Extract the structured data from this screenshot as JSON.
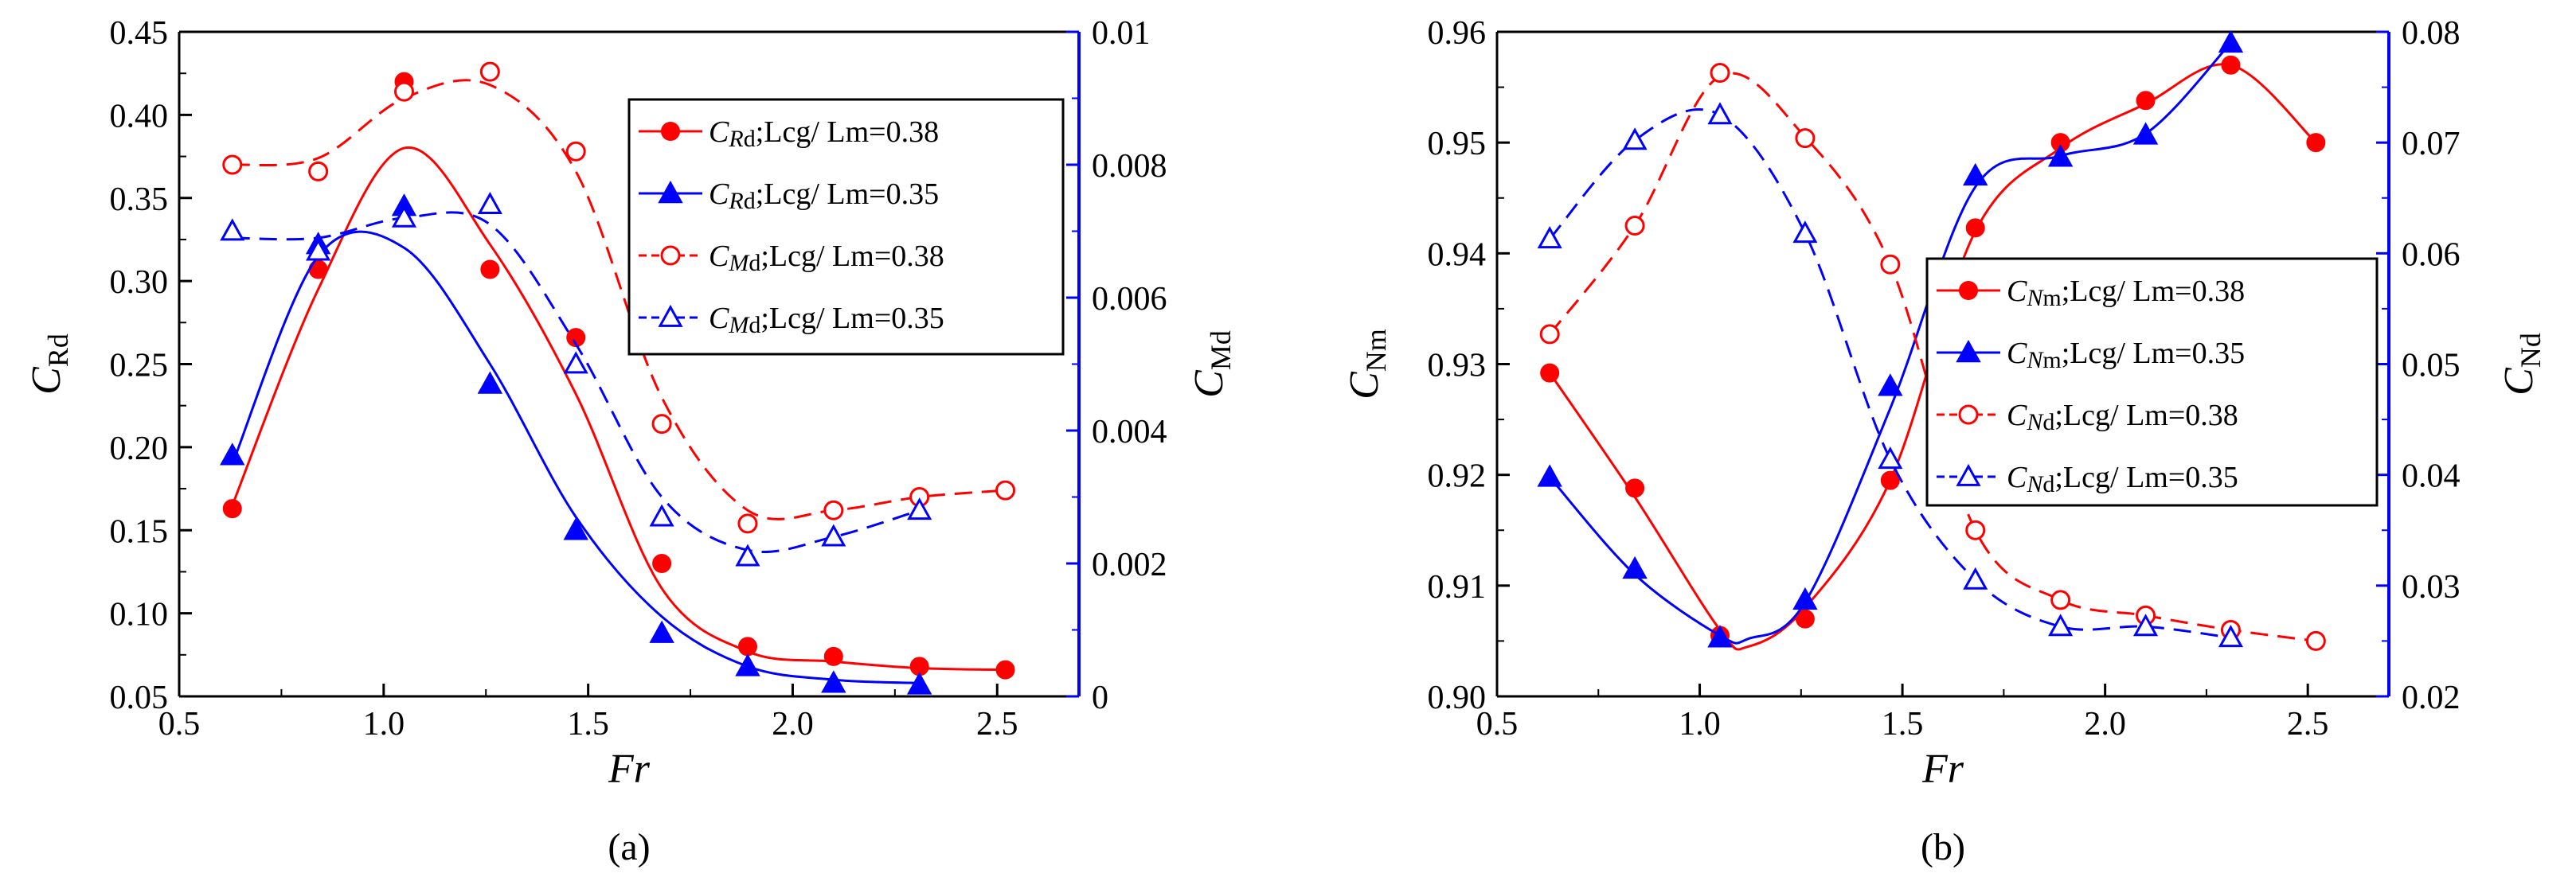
{
  "chart_data": [
    {
      "type": "line",
      "panel_label": "(a)",
      "xlabel": "Fr",
      "ylabel_left": {
        "main": "C",
        "sub": "Rd"
      },
      "ylabel_right": {
        "main": "C",
        "sub": "Md"
      },
      "xlim": [
        0.5,
        2.7
      ],
      "ylim_left": [
        0.05,
        0.45
      ],
      "ylim_right": [
        0,
        0.01
      ],
      "xticks": [
        {
          "v": 0.5,
          "label": "0.5"
        },
        {
          "v": 1.0,
          "label": "1.0"
        },
        {
          "v": 1.5,
          "label": "1.5"
        },
        {
          "v": 2.0,
          "label": "2.0"
        },
        {
          "v": 2.5,
          "label": "2.5"
        }
      ],
      "yticks_left": [
        {
          "v": 0.05,
          "label": "0.05"
        },
        {
          "v": 0.1,
          "label": "0.10"
        },
        {
          "v": 0.15,
          "label": "0.15"
        },
        {
          "v": 0.2,
          "label": "0.20"
        },
        {
          "v": 0.25,
          "label": "0.25"
        },
        {
          "v": 0.3,
          "label": "0.30"
        },
        {
          "v": 0.35,
          "label": "0.35"
        },
        {
          "v": 0.4,
          "label": "0.40"
        },
        {
          "v": 0.45,
          "label": "0.45"
        }
      ],
      "yticks_right": [
        {
          "v": 0,
          "label": "0"
        },
        {
          "v": 0.002,
          "label": "0.002"
        },
        {
          "v": 0.004,
          "label": "0.004"
        },
        {
          "v": 0.006,
          "label": "0.006"
        },
        {
          "v": 0.008,
          "label": "0.008"
        },
        {
          "v": 0.01,
          "label": "0.01"
        }
      ],
      "legend_position": "top-right",
      "series": [
        {
          "name": "CRd;Lcg/ Lm=0.38",
          "legend": {
            "main": "C",
            "sub": "R",
            "sub2": "d",
            "rest": ";Lcg/ Lm=0.38"
          },
          "axis": "left",
          "color": "#ff0000",
          "dash": "solid",
          "marker": "circle",
          "filled": true,
          "x": [
            0.63,
            0.84,
            1.05,
            1.26,
            1.47,
            1.68,
            1.89,
            2.1,
            2.31,
            2.52
          ],
          "y": [
            0.163,
            0.307,
            0.42,
            0.307,
            0.266,
            0.13,
            0.08,
            0.074,
            0.068,
            0.066
          ],
          "curve_x": [
            0.63,
            0.84,
            1.05,
            1.26,
            1.47,
            1.68,
            1.89,
            2.1,
            2.31,
            2.52
          ],
          "curve_y": [
            0.165,
            0.295,
            0.38,
            0.322,
            0.232,
            0.115,
            0.077,
            0.071,
            0.067,
            0.066
          ]
        },
        {
          "name": "CRd;Lcg/ Lm=0.35",
          "legend": {
            "main": "C",
            "sub": "R",
            "sub2": "d",
            "rest": ";Lcg/ Lm=0.35"
          },
          "axis": "left",
          "color": "#0000ff",
          "dash": "solid",
          "marker": "triangle",
          "filled": true,
          "x": [
            0.63,
            0.84,
            1.05,
            1.26,
            1.47,
            1.68,
            1.89,
            2.1,
            2.31
          ],
          "y": [
            0.195,
            0.322,
            0.345,
            0.238,
            0.15,
            0.088,
            0.068,
            0.058,
            0.057
          ],
          "curve_x": [
            0.63,
            0.84,
            1.05,
            1.26,
            1.47,
            1.68,
            1.89,
            2.1,
            2.31
          ],
          "curve_y": [
            0.19,
            0.315,
            0.32,
            0.25,
            0.158,
            0.098,
            0.068,
            0.06,
            0.058
          ]
        },
        {
          "name": "CMd;Lcg/ Lm=0.38",
          "legend": {
            "main": "C",
            "sub": "M",
            "sub2": "d",
            "rest": ";Lcg/ Lm=0.38"
          },
          "axis": "right",
          "color": "#ff0000",
          "dash": "dashed",
          "marker": "circle",
          "filled": false,
          "x": [
            0.63,
            0.84,
            1.05,
            1.26,
            1.47,
            1.68,
            1.89,
            2.1,
            2.31,
            2.52
          ],
          "y": [
            0.008,
            0.0079,
            0.0091,
            0.0094,
            0.0082,
            0.0041,
            0.0026,
            0.0028,
            0.003,
            0.0031
          ],
          "curve_x": [
            0.63,
            0.84,
            1.05,
            1.26,
            1.47,
            1.68,
            1.89,
            2.1,
            2.31,
            2.52
          ],
          "curve_y": [
            0.008,
            0.0081,
            0.009,
            0.0092,
            0.0079,
            0.0045,
            0.0028,
            0.0028,
            0.003,
            0.0031
          ]
        },
        {
          "name": "CMd;Lcg/ Lm=0.35",
          "legend": {
            "main": "C",
            "sub": "M",
            "sub2": "d",
            "rest": ";Lcg/ Lm=0.35"
          },
          "axis": "right",
          "color": "#0000ff",
          "dash": "dashed",
          "marker": "triangle",
          "filled": false,
          "x": [
            0.63,
            0.84,
            1.05,
            1.26,
            1.47,
            1.68,
            1.89,
            2.1,
            2.31
          ],
          "y": [
            0.007,
            0.0067,
            0.0072,
            0.0074,
            0.005,
            0.0027,
            0.0021,
            0.0024,
            0.0028
          ],
          "curve_x": [
            0.63,
            0.84,
            1.05,
            1.26,
            1.47,
            1.68,
            1.89,
            2.1,
            2.31
          ],
          "curve_y": [
            0.0069,
            0.0069,
            0.0072,
            0.0071,
            0.0053,
            0.003,
            0.0022,
            0.0024,
            0.0028
          ]
        }
      ]
    },
    {
      "type": "line",
      "panel_label": "(b)",
      "xlabel": "Fr",
      "ylabel_left": {
        "main": "C",
        "sub": "Nm"
      },
      "ylabel_right": {
        "main": "C",
        "sub": "Nd"
      },
      "xlim": [
        0.5,
        2.7
      ],
      "ylim_left": [
        0.9,
        0.96
      ],
      "ylim_right": [
        0.02,
        0.08
      ],
      "xticks": [
        {
          "v": 0.5,
          "label": "0.5"
        },
        {
          "v": 1.0,
          "label": "1.0"
        },
        {
          "v": 1.5,
          "label": "1.5"
        },
        {
          "v": 2.0,
          "label": "2.0"
        },
        {
          "v": 2.5,
          "label": "2.5"
        }
      ],
      "yticks_left": [
        {
          "v": 0.9,
          "label": "0.90"
        },
        {
          "v": 0.91,
          "label": "0.91"
        },
        {
          "v": 0.92,
          "label": "0.92"
        },
        {
          "v": 0.93,
          "label": "0.93"
        },
        {
          "v": 0.94,
          "label": "0.94"
        },
        {
          "v": 0.95,
          "label": "0.95"
        },
        {
          "v": 0.96,
          "label": "0.96"
        }
      ],
      "yticks_right": [
        {
          "v": 0.02,
          "label": "0.02"
        },
        {
          "v": 0.03,
          "label": "0.03"
        },
        {
          "v": 0.04,
          "label": "0.04"
        },
        {
          "v": 0.05,
          "label": "0.05"
        },
        {
          "v": 0.06,
          "label": "0.06"
        },
        {
          "v": 0.07,
          "label": "0.07"
        },
        {
          "v": 0.08,
          "label": "0.08"
        }
      ],
      "legend_position": "center-right",
      "series": [
        {
          "name": "CNm;Lcg/ Lm=0.38",
          "legend": {
            "main": "C",
            "sub": "N",
            "sub2": "m",
            "rest": ";Lcg/ Lm=0.38"
          },
          "axis": "left",
          "color": "#ff0000",
          "dash": "solid",
          "marker": "circle",
          "filled": true,
          "x": [
            0.63,
            0.84,
            1.05,
            1.26,
            1.47,
            1.68,
            1.89,
            2.1,
            2.31,
            2.52
          ],
          "y": [
            0.9292,
            0.9188,
            0.9055,
            0.907,
            0.9195,
            0.9423,
            0.95,
            0.9538,
            0.957,
            0.95
          ],
          "curve_x": [
            0.63,
            0.84,
            1.05,
            1.12,
            1.26,
            1.47,
            1.68,
            1.89,
            2.1,
            2.31,
            2.52
          ],
          "curve_y": [
            0.9292,
            0.918,
            0.906,
            0.9045,
            0.908,
            0.9195,
            0.942,
            0.9495,
            0.9535,
            0.957,
            0.95
          ]
        },
        {
          "name": "CNm;Lcg/ Lm=0.35",
          "legend": {
            "main": "C",
            "sub": "N",
            "sub2": "m",
            "rest": ";Lcg/ Lm=0.35"
          },
          "axis": "left",
          "color": "#0000ff",
          "dash": "solid",
          "marker": "triangle",
          "filled": true,
          "x": [
            0.63,
            0.84,
            1.05,
            1.26,
            1.47,
            1.68,
            1.89,
            2.1,
            2.31
          ],
          "y": [
            0.9198,
            0.9115,
            0.9053,
            0.9087,
            0.928,
            0.947,
            0.9487,
            0.9507,
            0.959
          ],
          "curve_x": [
            0.63,
            0.84,
            1.05,
            1.12,
            1.26,
            1.47,
            1.68,
            1.89,
            2.1,
            2.31
          ],
          "curve_y": [
            0.9198,
            0.911,
            0.9055,
            0.9052,
            0.9085,
            0.926,
            0.946,
            0.9488,
            0.9508,
            0.959
          ]
        },
        {
          "name": "CNd;Lcg/ Lm=0.38",
          "legend": {
            "main": "C",
            "sub": "N",
            "sub2": "d",
            "rest": ";Lcg/ Lm=0.38"
          },
          "axis": "right",
          "color": "#ff0000",
          "dash": "dashed",
          "marker": "circle",
          "filled": false,
          "x": [
            0.63,
            0.84,
            1.05,
            1.26,
            1.47,
            1.68,
            1.89,
            2.1,
            2.31,
            2.52
          ],
          "y": [
            0.0527,
            0.0625,
            0.0763,
            0.0704,
            0.059,
            0.035,
            0.0287,
            0.0273,
            0.026,
            0.025
          ],
          "curve_x": [
            0.63,
            0.84,
            1.05,
            1.26,
            1.47,
            1.68,
            1.89,
            2.1,
            2.31,
            2.52
          ],
          "curve_y": [
            0.0527,
            0.0625,
            0.076,
            0.0705,
            0.059,
            0.035,
            0.0287,
            0.0273,
            0.026,
            0.025
          ]
        },
        {
          "name": "CNd;Lcg/ Lm=0.35",
          "legend": {
            "main": "C",
            "sub": "N",
            "sub2": "d",
            "rest": ";Lcg/ Lm=0.35"
          },
          "axis": "right",
          "color": "#0000ff",
          "dash": "dashed",
          "marker": "triangle",
          "filled": false,
          "x": [
            0.63,
            0.84,
            1.05,
            1.26,
            1.47,
            1.68,
            1.89,
            2.1,
            2.31
          ],
          "y": [
            0.0613,
            0.0702,
            0.0725,
            0.0618,
            0.0414,
            0.0305,
            0.0263,
            0.0263,
            0.0253
          ],
          "curve_x": [
            0.63,
            0.84,
            1.05,
            1.26,
            1.47,
            1.68,
            1.89,
            2.1,
            2.31
          ],
          "curve_y": [
            0.0613,
            0.0702,
            0.0725,
            0.0618,
            0.0414,
            0.0305,
            0.0263,
            0.0263,
            0.0253
          ]
        }
      ]
    }
  ]
}
